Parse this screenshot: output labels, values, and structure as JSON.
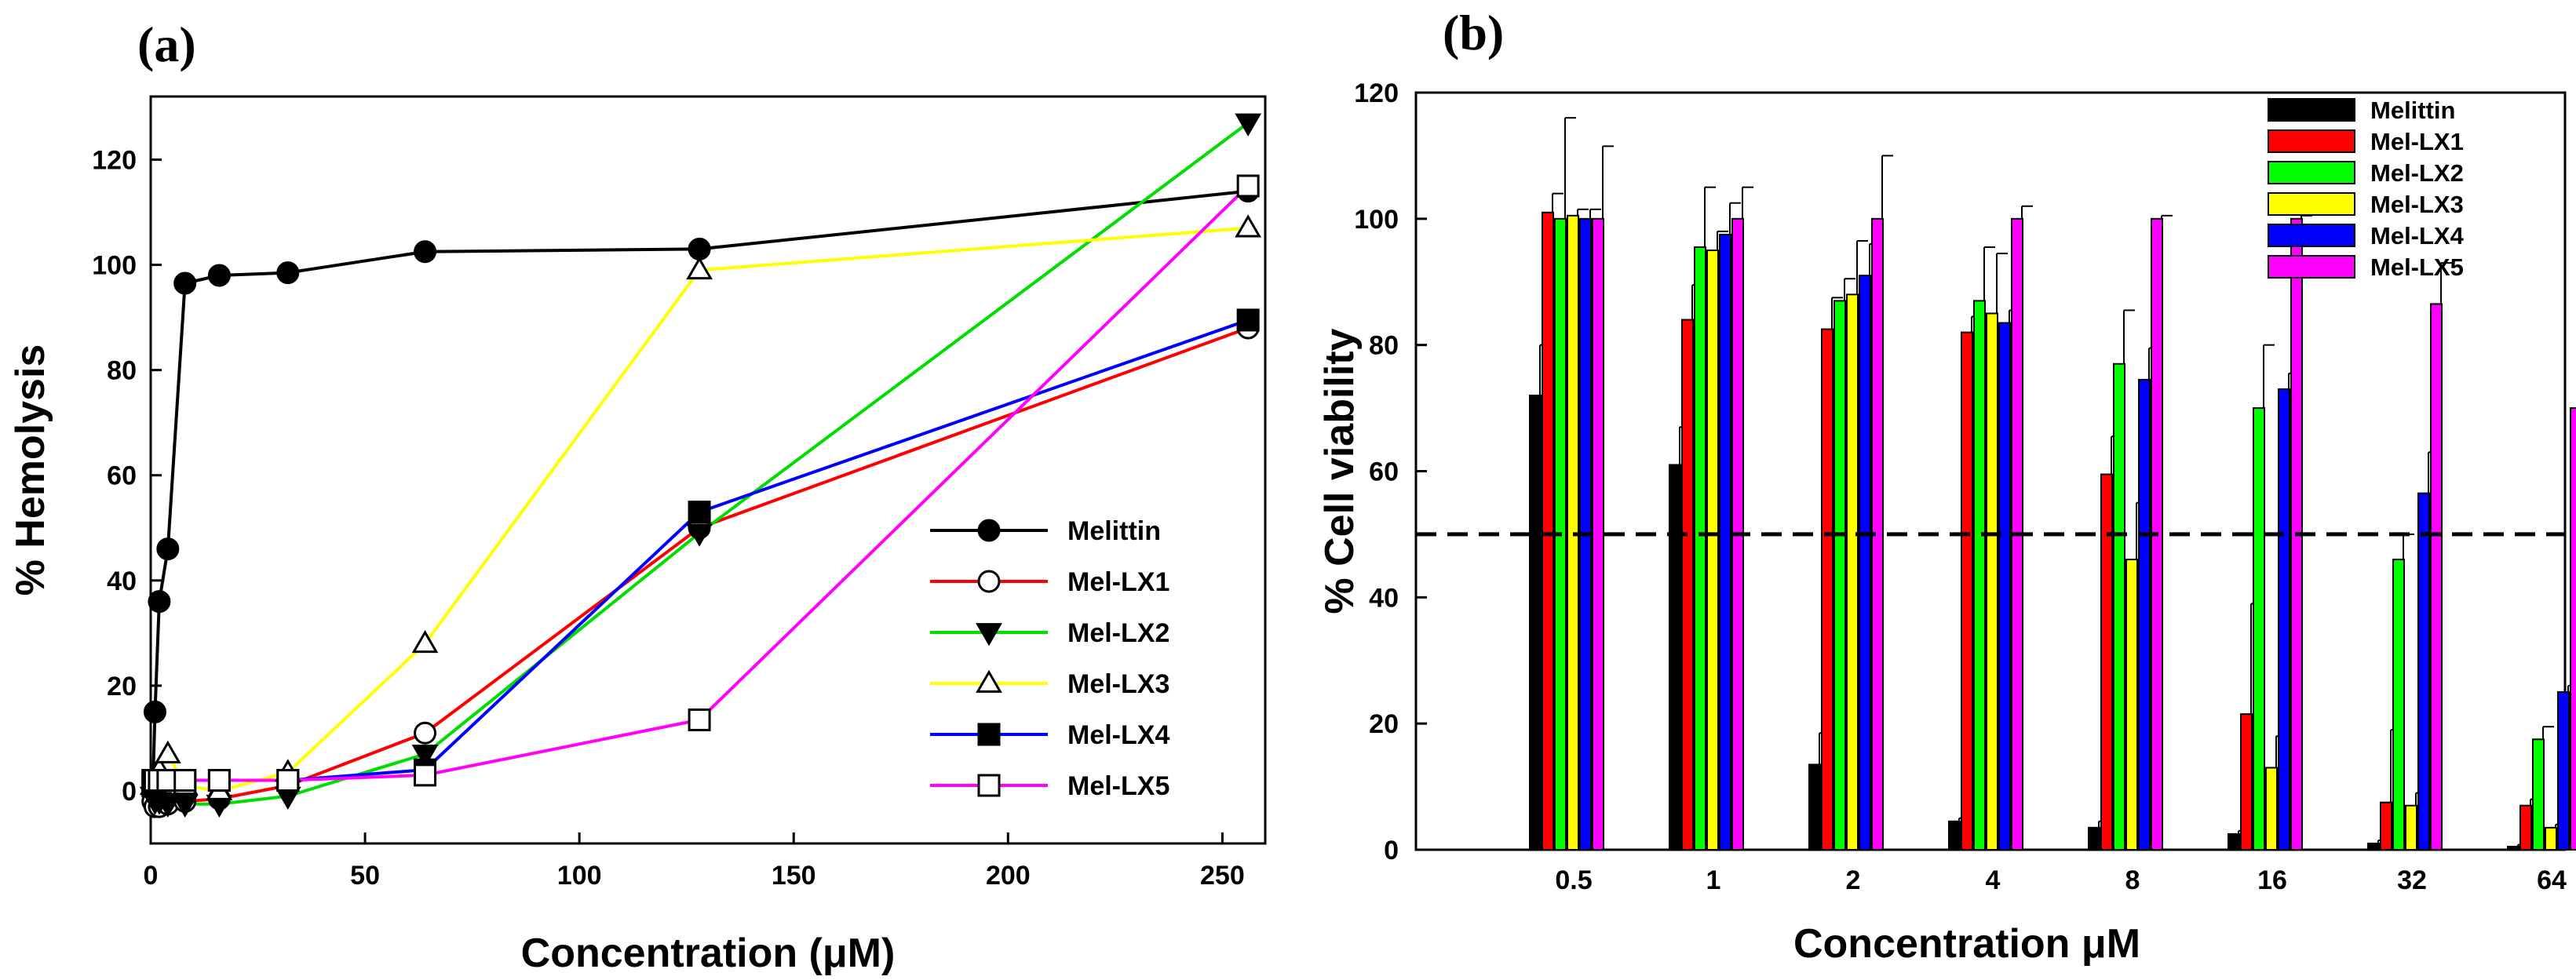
{
  "chart_data": [
    {
      "panel_label": "(a)",
      "type": "line",
      "xlabel": "Concentration (μM)",
      "ylabel": "% Hemolysis",
      "xlim": [
        0,
        260
      ],
      "ylim": [
        -10,
        132
      ],
      "xticks": [
        0,
        50,
        100,
        150,
        200,
        250
      ],
      "yticks": [
        0,
        20,
        40,
        60,
        80,
        100,
        120
      ],
      "legend_position": "bottom-right",
      "series": [
        {
          "name": "Melittin",
          "color": "#000000",
          "marker": "circle-filled",
          "x": [
            0.5,
            1,
            2,
            4,
            8,
            16,
            32,
            64,
            128,
            256
          ],
          "y": [
            0.5,
            15,
            36,
            46,
            96.5,
            98,
            98.5,
            102.5,
            103,
            114
          ]
        },
        {
          "name": "Mel-LX1",
          "color": "#ff0000",
          "marker": "circle-open",
          "x": [
            0.5,
            1,
            2,
            4,
            8,
            16,
            32,
            64,
            128,
            256
          ],
          "y": [
            -2,
            -3,
            -3,
            -2.5,
            -2,
            -1.5,
            1,
            11,
            50,
            88
          ]
        },
        {
          "name": "Mel-LX2",
          "color": "#00dd00",
          "marker": "triangle-down-filled",
          "x": [
            0.5,
            1,
            2,
            4,
            8,
            16,
            32,
            64,
            128,
            256
          ],
          "y": [
            -1,
            -2,
            -2,
            -2.5,
            -2.5,
            -2.5,
            -1,
            7,
            49,
            127
          ]
        },
        {
          "name": "Mel-LX3",
          "color": "#ffff00",
          "marker": "triangle-up-open",
          "x": [
            0.5,
            1,
            2,
            4,
            8,
            16,
            32,
            64,
            128,
            256
          ],
          "y": [
            1,
            3,
            4,
            7,
            1,
            0,
            3.5,
            28,
            99,
            107
          ]
        },
        {
          "name": "Mel-LX4",
          "color": "#0000ff",
          "marker": "square-filled",
          "x": [
            0.5,
            1,
            2,
            4,
            8,
            16,
            32,
            64,
            128,
            256
          ],
          "y": [
            1,
            1.5,
            2,
            2,
            2,
            2,
            2,
            4,
            53,
            89.5
          ]
        },
        {
          "name": "Mel-LX5",
          "color": "#ff00ff",
          "marker": "square-open",
          "x": [
            0.5,
            1,
            2,
            4,
            8,
            16,
            32,
            64,
            128,
            256
          ],
          "y": [
            2,
            2,
            2,
            2,
            2,
            2,
            2,
            3,
            13.5,
            115
          ]
        }
      ]
    },
    {
      "panel_label": "(b)",
      "type": "bar",
      "xlabel": "Concentration μM",
      "ylabel": "% Cell viability",
      "ylim": [
        0,
        120
      ],
      "yticks": [
        0,
        20,
        40,
        60,
        80,
        100,
        120
      ],
      "categories": [
        "0.5",
        "1",
        "2",
        "4",
        "8",
        "16",
        "32",
        "64"
      ],
      "reference_line": {
        "y": 50,
        "style": "dashed"
      },
      "legend_position": "top-right",
      "series": [
        {
          "name": "Melittin",
          "color": "#000000",
          "values": [
            72,
            61,
            13.5,
            4.5,
            3.5,
            2.5,
            1,
            0.5
          ],
          "errors": [
            8,
            6,
            5,
            0.5,
            1,
            0.5,
            0.5,
            0.3
          ]
        },
        {
          "name": "Mel-LX1",
          "color": "#ff0000",
          "values": [
            101,
            84,
            82.5,
            82,
            59.5,
            21.5,
            7.5,
            7
          ],
          "errors": [
            3,
            5.5,
            5,
            2.5,
            6,
            17.5,
            11.5,
            1
          ]
        },
        {
          "name": "Mel-LX2",
          "color": "#00ff00",
          "values": [
            100,
            95.5,
            87,
            87,
            77,
            70,
            46,
            17.5
          ],
          "errors": [
            16,
            9.5,
            3.5,
            8.5,
            8.5,
            10,
            4,
            2
          ]
        },
        {
          "name": "Mel-LX3",
          "color": "#ffff00",
          "values": [
            100.5,
            95,
            88,
            85,
            46,
            13,
            7,
            3.5
          ],
          "errors": [
            1,
            3,
            8.5,
            9.5,
            9,
            5,
            2,
            0.5
          ]
        },
        {
          "name": "Mel-LX4",
          "color": "#0000ff",
          "values": [
            100,
            97.5,
            91,
            83.5,
            74.5,
            73,
            56.5,
            25
          ],
          "errors": [
            1.5,
            5,
            5,
            2,
            5,
            2.5,
            6.5,
            1
          ]
        },
        {
          "name": "Mel-LX5",
          "color": "#ff00ff",
          "values": [
            100,
            100,
            100,
            100,
            100,
            100,
            86.5,
            70
          ],
          "errors": [
            11.5,
            5,
            10,
            2,
            0.5,
            0.5,
            6.5,
            1
          ]
        }
      ]
    }
  ]
}
